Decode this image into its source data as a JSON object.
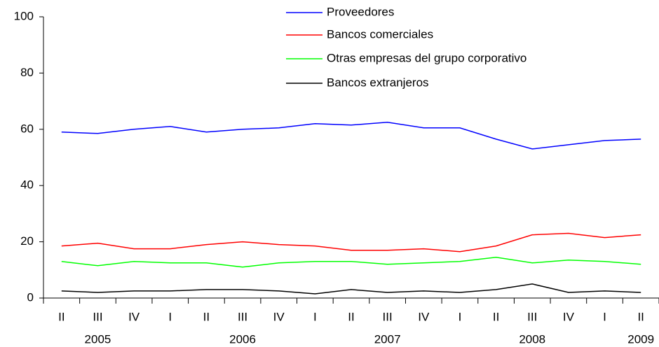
{
  "chart_data": {
    "type": "line",
    "categories": [
      "II",
      "III",
      "IV",
      "I",
      "II",
      "III",
      "IV",
      "I",
      "II",
      "III",
      "IV",
      "I",
      "II",
      "III",
      "IV",
      "I",
      "II"
    ],
    "years": [
      null,
      "2005",
      null,
      null,
      null,
      "2006",
      null,
      null,
      null,
      "2007",
      null,
      null,
      null,
      "2008",
      null,
      null,
      "2009"
    ],
    "series": [
      {
        "name": "Proveedores",
        "color": "#0000ff",
        "values": [
          59,
          58.5,
          60,
          61,
          59,
          60,
          60.5,
          62,
          61.5,
          62.5,
          60.5,
          60.5,
          56.5,
          53,
          54.5,
          56,
          56.5
        ]
      },
      {
        "name": "Bancos comerciales",
        "color": "#ff0000",
        "values": [
          18.5,
          19.5,
          17.5,
          17.5,
          19,
          20,
          19,
          18.5,
          17,
          17,
          17.5,
          16.5,
          18.5,
          22.5,
          23,
          21.5,
          22.5
        ]
      },
      {
        "name": "Otras empresas del grupo corporativo",
        "color": "#00ff00",
        "values": [
          13,
          11.5,
          13,
          12.5,
          12.5,
          11,
          12.5,
          13,
          13,
          12,
          12.5,
          13,
          14.5,
          12.5,
          13.5,
          13,
          12
        ]
      },
      {
        "name": "Bancos extranjeros",
        "color": "#000000",
        "values": [
          2.5,
          2,
          2.5,
          2.5,
          3,
          3,
          2.5,
          1.5,
          3,
          2,
          2.5,
          2,
          3,
          5,
          2,
          2.5,
          2
        ]
      }
    ],
    "ylim": [
      0,
      100
    ],
    "yticks": [
      0,
      20,
      40,
      60,
      80,
      100
    ],
    "grid": false,
    "legend": "top"
  }
}
